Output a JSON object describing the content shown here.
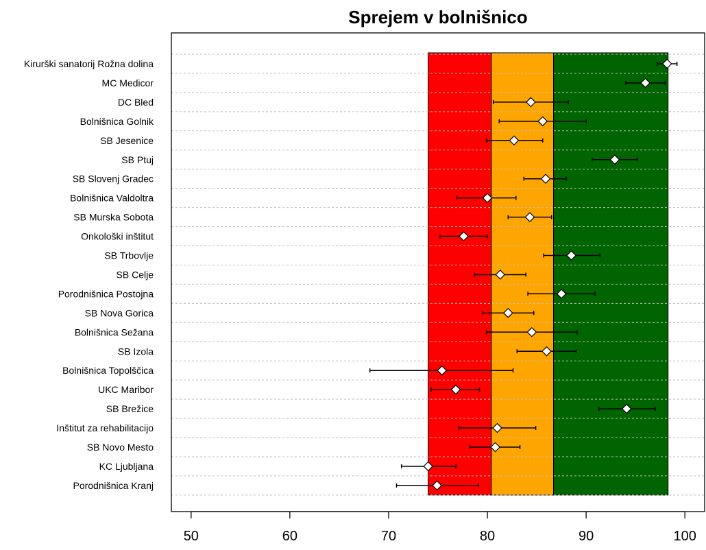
{
  "chart_data": {
    "type": "scatter",
    "title": "Sprejem v bolnišnico",
    "xlim": [
      48,
      102
    ],
    "x_ticks": [
      50,
      60,
      70,
      80,
      90,
      100
    ],
    "grid": "horizontal dotted per category",
    "bands": [
      {
        "from": 74.0,
        "to": 80.4,
        "color": "#ff0000"
      },
      {
        "from": 80.4,
        "to": 86.7,
        "color": "#ffa500"
      },
      {
        "from": 86.7,
        "to": 98.3,
        "color": "#006400"
      }
    ],
    "point_style": {
      "marker": "diamond",
      "fill": "#ffffff",
      "stroke": "#000000"
    },
    "categories": [
      {
        "label": "Kirurški sanatorij Rožna dolina",
        "value": 98.2,
        "low": 97.2,
        "high": 99.2
      },
      {
        "label": "MC Medicor",
        "value": 96.0,
        "low": 94.0,
        "high": 98.0
      },
      {
        "label": "DC Bled",
        "value": 84.4,
        "low": 80.6,
        "high": 88.2
      },
      {
        "label": "Bolnišnica Golnik",
        "value": 85.6,
        "low": 81.2,
        "high": 90.0
      },
      {
        "label": "SB Jesenice",
        "value": 82.7,
        "low": 79.9,
        "high": 85.6
      },
      {
        "label": "SB Ptuj",
        "value": 92.9,
        "low": 90.6,
        "high": 95.2
      },
      {
        "label": "SB Slovenj Gradec",
        "value": 85.9,
        "low": 83.7,
        "high": 88.0
      },
      {
        "label": "Bolnišnica Valdoltra",
        "value": 80.0,
        "low": 76.9,
        "high": 82.9
      },
      {
        "label": "SB Murska Sobota",
        "value": 84.3,
        "low": 82.1,
        "high": 86.5
      },
      {
        "label": "Onkološki inštitut",
        "value": 77.6,
        "low": 75.2,
        "high": 80.0
      },
      {
        "label": "SB Trbovlje",
        "value": 88.5,
        "low": 85.7,
        "high": 91.4
      },
      {
        "label": "SB Celje",
        "value": 81.3,
        "low": 78.7,
        "high": 83.9
      },
      {
        "label": "Porodnišnica Postojna",
        "value": 87.5,
        "low": 84.1,
        "high": 90.9
      },
      {
        "label": "SB Nova Gorica",
        "value": 82.1,
        "low": 79.5,
        "high": 84.7
      },
      {
        "label": "Bolnišnica Sežana",
        "value": 84.5,
        "low": 79.9,
        "high": 89.1
      },
      {
        "label": "SB Izola",
        "value": 86.0,
        "low": 83.0,
        "high": 89.0
      },
      {
        "label": "Bolnišnica Topolščica",
        "value": 75.4,
        "low": 68.1,
        "high": 82.6
      },
      {
        "label": "UKC Maribor",
        "value": 76.8,
        "low": 74.3,
        "high": 79.2
      },
      {
        "label": "SB Brežice",
        "value": 94.1,
        "low": 91.3,
        "high": 97.0
      },
      {
        "label": "Inštitut za rehabilitacijo",
        "value": 81.0,
        "low": 77.1,
        "high": 84.9
      },
      {
        "label": "SB Novo Mesto",
        "value": 80.8,
        "low": 78.2,
        "high": 83.3
      },
      {
        "label": "KC Ljubljana",
        "value": 74.0,
        "low": 71.3,
        "high": 76.8
      },
      {
        "label": "Porodnišnica Kranj",
        "value": 74.9,
        "low": 70.8,
        "high": 79.1
      }
    ]
  }
}
